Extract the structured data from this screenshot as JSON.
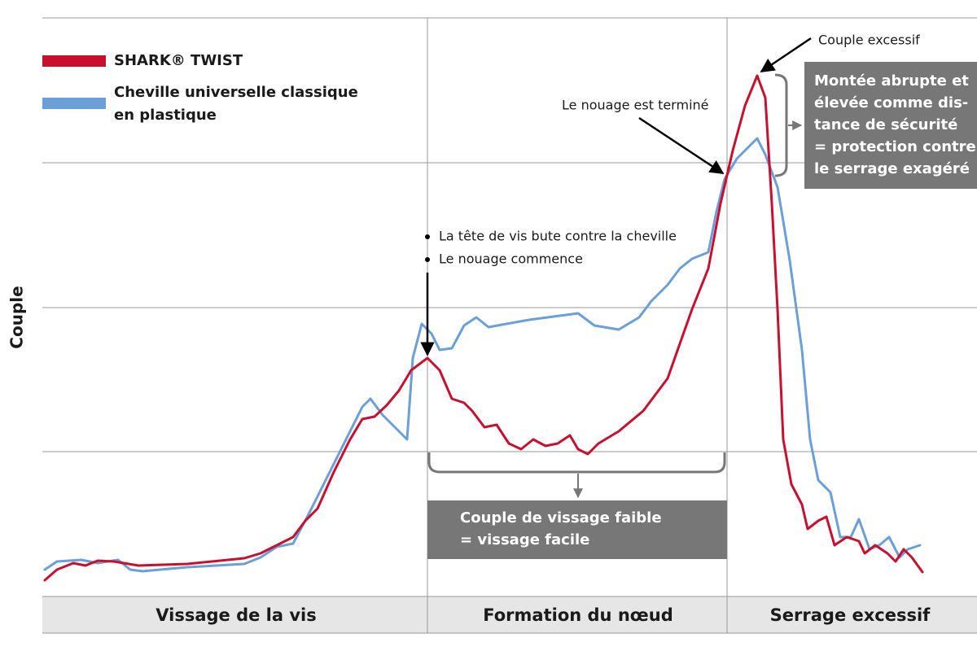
{
  "legend": {
    "items": [
      "SHARK® TWIST",
      [
        "Cheville universelle classique",
        "en plastique"
      ]
    ]
  },
  "y_axis_label": "Couple",
  "annotations": {
    "peak": "Couple excessif",
    "knot_done": "Le nouage est terminé",
    "knot_start": [
      "La tête de vis bute contre la cheville",
      "Le nouage commence"
    ]
  },
  "boxes": {
    "safety": [
      "Montée abrupte et",
      "élevée comme dis-",
      "tance de sécurité",
      "= protection contre",
      "le serrage exagéré"
    ],
    "low_torque": [
      "Couple de vissage faible",
      "= vissage facile"
    ]
  },
  "phases": [
    "Vissage de la vis",
    "Formation du nœud",
    "Serrage excessif"
  ]
}
